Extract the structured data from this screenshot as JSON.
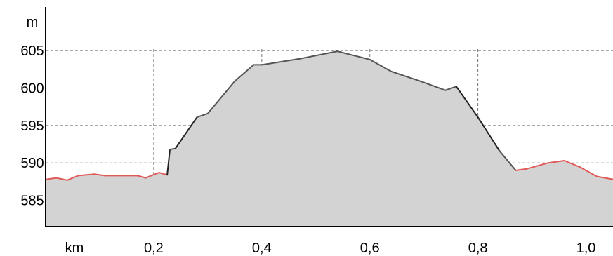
{
  "chart_data": {
    "type": "area",
    "y_unit": "m",
    "x_unit": "km",
    "xlim": [
      0,
      1.05
    ],
    "ylim": [
      581.5,
      611
    ],
    "x_ticks": [
      0.2,
      0.4,
      0.6,
      0.8,
      1.0
    ],
    "x_tick_labels": [
      "0,2",
      "0,4",
      "0,6",
      "0,8",
      "1,0"
    ],
    "y_ticks": [
      585,
      590,
      595,
      600,
      605
    ],
    "y_tick_labels": [
      "585",
      "590",
      "595",
      "600",
      "605"
    ],
    "grid": true,
    "fill_color": "#d3d3d3",
    "segment_colors": {
      "low": "#e05a5a",
      "mid": "#555555",
      "steep": "#222222"
    },
    "points": [
      {
        "x": 0.0,
        "y": 587.8
      },
      {
        "x": 0.02,
        "y": 588.0
      },
      {
        "x": 0.04,
        "y": 587.7
      },
      {
        "x": 0.06,
        "y": 588.3
      },
      {
        "x": 0.09,
        "y": 588.5
      },
      {
        "x": 0.11,
        "y": 588.3
      },
      {
        "x": 0.14,
        "y": 588.3
      },
      {
        "x": 0.17,
        "y": 588.3
      },
      {
        "x": 0.185,
        "y": 588.0
      },
      {
        "x": 0.21,
        "y": 588.7
      },
      {
        "x": 0.225,
        "y": 588.4
      },
      {
        "x": 0.23,
        "y": 591.8
      },
      {
        "x": 0.24,
        "y": 591.9
      },
      {
        "x": 0.28,
        "y": 596.1
      },
      {
        "x": 0.3,
        "y": 596.6
      },
      {
        "x": 0.35,
        "y": 600.9
      },
      {
        "x": 0.385,
        "y": 603.1
      },
      {
        "x": 0.4,
        "y": 603.1
      },
      {
        "x": 0.47,
        "y": 603.9
      },
      {
        "x": 0.54,
        "y": 604.9
      },
      {
        "x": 0.6,
        "y": 603.8
      },
      {
        "x": 0.64,
        "y": 602.2
      },
      {
        "x": 0.69,
        "y": 601.0
      },
      {
        "x": 0.74,
        "y": 599.7
      },
      {
        "x": 0.76,
        "y": 600.2
      },
      {
        "x": 0.8,
        "y": 596.1
      },
      {
        "x": 0.84,
        "y": 591.6
      },
      {
        "x": 0.87,
        "y": 589.0
      },
      {
        "x": 0.89,
        "y": 589.2
      },
      {
        "x": 0.93,
        "y": 590.0
      },
      {
        "x": 0.96,
        "y": 590.3
      },
      {
        "x": 0.99,
        "y": 589.4
      },
      {
        "x": 1.02,
        "y": 588.2
      },
      {
        "x": 1.05,
        "y": 587.8
      }
    ]
  }
}
